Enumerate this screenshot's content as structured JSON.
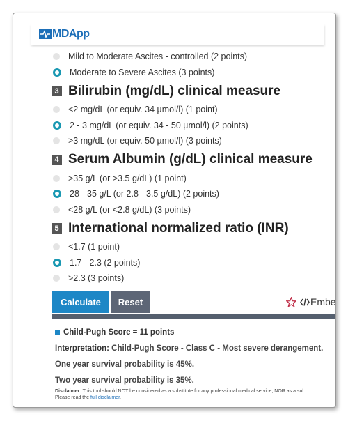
{
  "header": {
    "logo": "MDApp"
  },
  "sections": [
    {
      "options": [
        {
          "label": "Mild to Moderate Ascites - controlled (2 points)",
          "selected": false
        },
        {
          "label": "Moderate to Severe Ascites (3 points)",
          "selected": true
        }
      ]
    },
    {
      "number": "3",
      "title": "Bilirubin (mg/dL) clinical measure",
      "options": [
        {
          "label": "<2 mg/dL (or equiv. 34 µmol/l) (1 point)",
          "selected": false
        },
        {
          "label": "2 - 3 mg/dL (or equiv. 34 - 50 µmol/l) (2 points)",
          "selected": true
        },
        {
          "label": ">3 mg/dL (or equiv. 50 µmol/l) (3 points)",
          "selected": false
        }
      ]
    },
    {
      "number": "4",
      "title": "Serum Albumin (g/dL) clinical measure",
      "options": [
        {
          "label": ">35 g/L (or >3.5 g/dL) (1 point)",
          "selected": false
        },
        {
          "label": "28 - 35 g/L (or 2.8 - 3.5 g/dL) (2 points)",
          "selected": true
        },
        {
          "label": "<28 g/L (or <2.8 g/dL) (3 points)",
          "selected": false
        }
      ]
    },
    {
      "number": "5",
      "title": "International normalized ratio (INR)",
      "options": [
        {
          "label": "<1.7 (1 point)",
          "selected": false
        },
        {
          "label": "1.7 - 2.3 (2 points)",
          "selected": true
        },
        {
          "label": ">2.3 (3 points)",
          "selected": false
        }
      ]
    }
  ],
  "buttons": {
    "calculate": "Calculate",
    "reset": "Reset",
    "embed": "Embe"
  },
  "result": {
    "score": "Child-Pugh Score = 11 points",
    "interpretation_label": "Interpretation:",
    "interpretation": "Child-Pugh Score - Class C - Most severe derangement.",
    "one_year": "One year survival probability is 45%.",
    "two_year": "Two year survival probability is 35%.",
    "disclaimer_label": "Disclaimer:",
    "disclaimer": "This tool should NOT be considered as a substitute for any professional medical service, NOR as a sul",
    "read_prefix": "Please read the",
    "read_link": "full disclaimer",
    "read_suffix": "."
  }
}
